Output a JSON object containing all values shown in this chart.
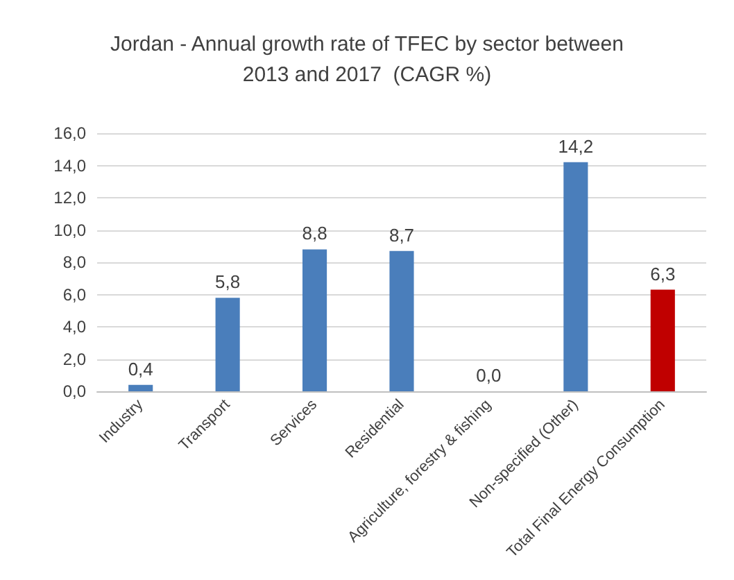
{
  "chart_data": {
    "type": "bar",
    "title": "Jordan - Annual growth rate of TFEC by sector between\n2013 and 2017  (CAGR %)",
    "categories": [
      "Industry",
      "Transport",
      "Services",
      "Residential",
      "Agriculture, forestry & fishing",
      "Non-specified (Other)",
      "Total Final Energy Consumption"
    ],
    "values": [
      0.4,
      5.8,
      8.8,
      8.7,
      0.0,
      14.2,
      6.3
    ],
    "colors": [
      "#4a7ebb",
      "#4a7ebb",
      "#4a7ebb",
      "#4a7ebb",
      "#4a7ebb",
      "#4a7ebb",
      "#c00000"
    ],
    "value_labels": [
      "0,4",
      "5,8",
      "8,8",
      "8,7",
      "0,0",
      "14,2",
      "6,3"
    ],
    "ylim": [
      0,
      16
    ],
    "yticks": [
      {
        "value": 0,
        "label": "0,0"
      },
      {
        "value": 2,
        "label": "2,0"
      },
      {
        "value": 4,
        "label": "4,0"
      },
      {
        "value": 6,
        "label": "6,0"
      },
      {
        "value": 8,
        "label": "8,0"
      },
      {
        "value": 10,
        "label": "10,0"
      },
      {
        "value": 12,
        "label": "12,0"
      },
      {
        "value": 14,
        "label": "14,0"
      },
      {
        "value": 16,
        "label": "16,0"
      }
    ],
    "grid": true
  }
}
